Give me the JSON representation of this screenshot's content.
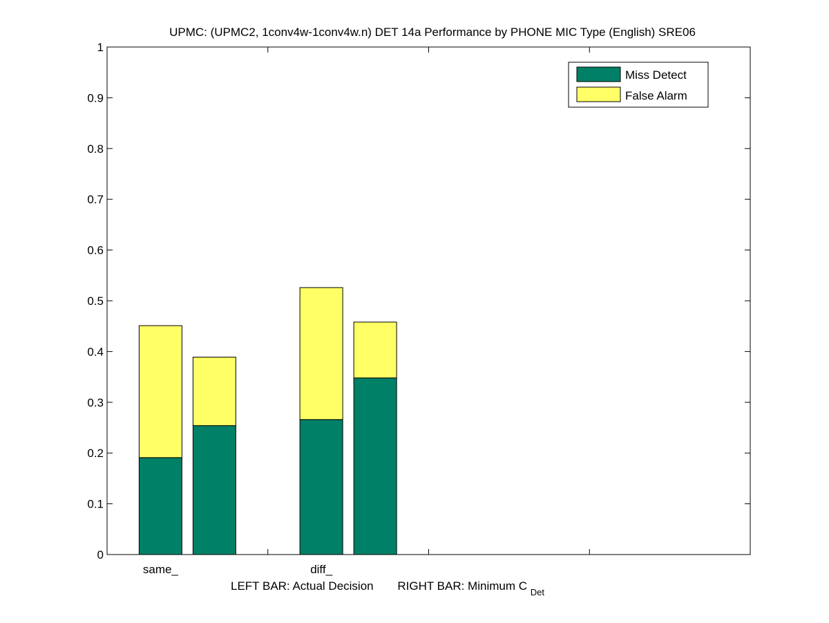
{
  "chart_data": {
    "type": "bar",
    "stacked": true,
    "title": "UPMC: (UPMC2, 1conv4w-1conv4w.n) DET 14a Performance by PHONE MIC Type (English) SRE06",
    "categories": [
      "same_",
      "diff_"
    ],
    "bar_roles": [
      "Actual Decision",
      "Minimum C_Det"
    ],
    "series": [
      {
        "name": "Miss Detect",
        "color": "#008066",
        "values": [
          [
            0.191,
            0.254
          ],
          [
            0.266,
            0.348
          ]
        ]
      },
      {
        "name": "False Alarm",
        "color": "#ffff66",
        "values": [
          [
            0.26,
            0.135
          ],
          [
            0.26,
            0.11
          ]
        ]
      }
    ],
    "ylim": [
      0,
      1
    ],
    "yticks": [
      "0",
      "0.1",
      "0.2",
      "0.3",
      "0.4",
      "0.5",
      "0.6",
      "0.7",
      "0.8",
      "0.9",
      "1"
    ],
    "xlim_slots": 4,
    "xlabel": {
      "left": "LEFT BAR: Actual Decision",
      "right_main": "RIGHT BAR: Minimum C",
      "right_sub": "Det"
    },
    "legend": {
      "position": "top-right",
      "entries": [
        "Miss Detect",
        "False Alarm"
      ]
    },
    "grid": false
  }
}
